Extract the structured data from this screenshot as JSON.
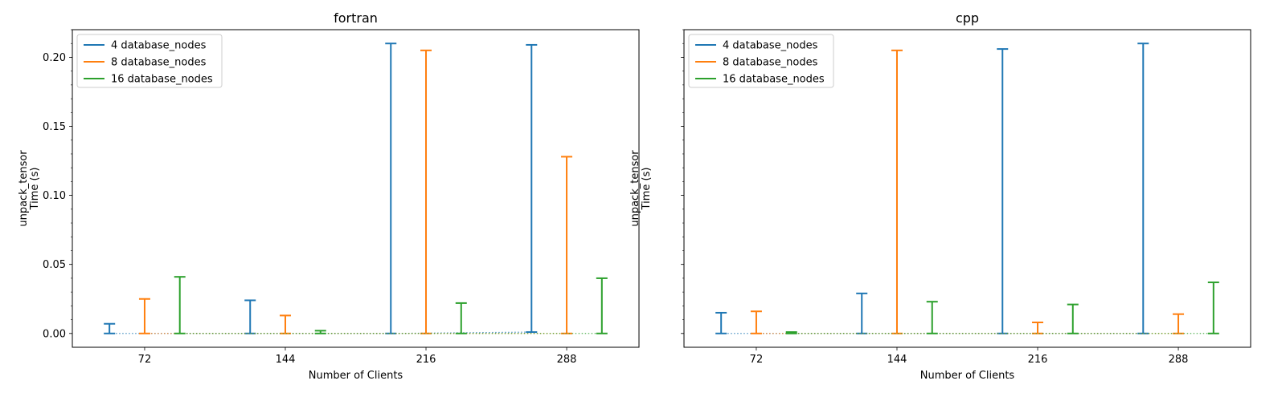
{
  "chart_data": [
    {
      "type": "errorbar",
      "title": "fortran",
      "xlabel": "Number of Clients",
      "ylabel_lines": [
        "unpack_tensor",
        "Time (s)"
      ],
      "x_ticks": [
        72,
        144,
        216,
        288
      ],
      "xlim": [
        35,
        325
      ],
      "ylim": [
        -0.01,
        0.22
      ],
      "y_ticks": [
        0.0,
        0.05,
        0.1,
        0.15,
        0.2
      ],
      "y_tick_labels": [
        "0.00",
        "0.05",
        "0.10",
        "0.15",
        "0.20"
      ],
      "legend_position": "top-left",
      "series": [
        {
          "name": "4 database_nodes",
          "color": "#1f77b4",
          "points": [
            {
              "x": 72,
              "low": 0.0,
              "high": 0.007
            },
            {
              "x": 144,
              "low": 0.0,
              "high": 0.024
            },
            {
              "x": 216,
              "low": 0.0,
              "high": 0.21
            },
            {
              "x": 288,
              "low": 0.001,
              "high": 0.209
            }
          ]
        },
        {
          "name": "8 database_nodes",
          "color": "#ff7f0e",
          "points": [
            {
              "x": 72,
              "low": 0.0,
              "high": 0.025
            },
            {
              "x": 144,
              "low": 0.0,
              "high": 0.013
            },
            {
              "x": 216,
              "low": 0.0,
              "high": 0.205
            },
            {
              "x": 288,
              "low": 0.0,
              "high": 0.128
            }
          ]
        },
        {
          "name": "16 database_nodes",
          "color": "#2ca02c",
          "points": [
            {
              "x": 72,
              "low": 0.0,
              "high": 0.041
            },
            {
              "x": 144,
              "low": 0.0,
              "high": 0.002
            },
            {
              "x": 216,
              "low": 0.0,
              "high": 0.022
            },
            {
              "x": 288,
              "low": 0.0,
              "high": 0.04
            }
          ]
        }
      ]
    },
    {
      "type": "errorbar",
      "title": "cpp",
      "xlabel": "Number of Clients",
      "ylabel_lines": [
        "unpack_tensor",
        "Time (s)"
      ],
      "x_ticks": [
        72,
        144,
        216,
        288
      ],
      "xlim": [
        35,
        325
      ],
      "ylim": [
        -0.01,
        0.22
      ],
      "y_ticks": [
        0.0,
        0.05,
        0.1,
        0.15,
        0.2
      ],
      "y_tick_labels": [
        "",
        "",
        "",
        "",
        ""
      ],
      "legend_position": "top-left",
      "series": [
        {
          "name": "4 database_nodes",
          "color": "#1f77b4",
          "points": [
            {
              "x": 72,
              "low": 0.0,
              "high": 0.015
            },
            {
              "x": 144,
              "low": 0.0,
              "high": 0.029
            },
            {
              "x": 216,
              "low": 0.0,
              "high": 0.206
            },
            {
              "x": 288,
              "low": 0.0,
              "high": 0.21
            }
          ]
        },
        {
          "name": "8 database_nodes",
          "color": "#ff7f0e",
          "points": [
            {
              "x": 72,
              "low": 0.0,
              "high": 0.016
            },
            {
              "x": 144,
              "low": 0.0,
              "high": 0.205
            },
            {
              "x": 216,
              "low": 0.0,
              "high": 0.008
            },
            {
              "x": 288,
              "low": 0.0,
              "high": 0.014
            }
          ]
        },
        {
          "name": "16 database_nodes",
          "color": "#2ca02c",
          "points": [
            {
              "x": 72,
              "low": 0.0,
              "high": 0.001
            },
            {
              "x": 144,
              "low": 0.0,
              "high": 0.023
            },
            {
              "x": 216,
              "low": 0.0,
              "high": 0.021
            },
            {
              "x": 288,
              "low": 0.0,
              "high": 0.037
            }
          ]
        }
      ]
    }
  ]
}
